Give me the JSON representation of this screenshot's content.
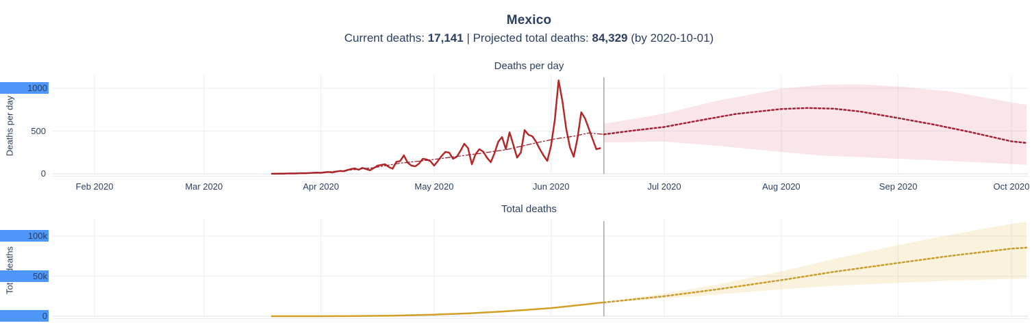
{
  "header": {
    "title": "Mexico",
    "subtitle": {
      "current_label": "Current deaths:",
      "current_value": "17,141",
      "separator": "|",
      "projected_label": "Projected total deaths:",
      "projected_value": "84,329",
      "suffix": "(by 2020-10-01)"
    }
  },
  "colors": {
    "text": "#2a3f5f",
    "grid": "#e9edf2",
    "zeroline": "#dde2ea",
    "axisline": "#e8ebf1",
    "divider": "#8e8e8e",
    "selection_highlight": "#4e96f7",
    "daily_actual": "#b32727",
    "daily_trend": "#9c2030",
    "daily_projection": "#a32135",
    "daily_band": "rgba(214,62,84,0.13)",
    "total_actual": "#d19f26",
    "total_projection": "#c99d2c",
    "total_band": "rgba(234,181,73,0.18)"
  },
  "chart_data": [
    {
      "type": "line",
      "title": "Deaths per day",
      "ylabel": "Deaths per day",
      "divider_date": "2020-06-15",
      "x_axis": {
        "ticks": [
          {
            "label": "Feb 2020",
            "date": "2020-02-01"
          },
          {
            "label": "Mar 2020",
            "date": "2020-03-01"
          },
          {
            "label": "Apr 2020",
            "date": "2020-04-01"
          },
          {
            "label": "May 2020",
            "date": "2020-05-01"
          },
          {
            "label": "Jun 2020",
            "date": "2020-06-01"
          },
          {
            "label": "Jul 2020",
            "date": "2020-07-01"
          },
          {
            "label": "Aug 2020",
            "date": "2020-08-01"
          },
          {
            "label": "Sep 2020",
            "date": "2020-09-01"
          },
          {
            "label": "Oct 2020",
            "date": "2020-10-01"
          }
        ]
      },
      "y_axis": {
        "ticks": [
          {
            "label": "0",
            "value": 0,
            "selected": false
          },
          {
            "label": "500",
            "value": 500,
            "selected": false
          },
          {
            "label": "1000",
            "value": 1000,
            "selected": true
          }
        ],
        "range": [
          0,
          1152
        ]
      },
      "series": [
        {
          "name": "daily-deaths-actual",
          "style": "solid",
          "color": "#b32727",
          "start": "2020-03-19",
          "values": [
            2,
            1,
            3,
            2,
            4,
            5,
            4,
            6,
            8,
            7,
            10,
            12,
            14,
            12,
            18,
            22,
            16,
            26,
            34,
            30,
            44,
            56,
            64,
            48,
            70,
            56,
            42,
            68,
            96,
            104,
            112,
            80,
            60,
            140,
            150,
            216,
            130,
            96,
            88,
            120,
            176,
            168,
            150,
            96,
            150,
            210,
            256,
            248,
            176,
            200,
            270,
            352,
            300,
            112,
            230,
            288,
            260,
            190,
            136,
            240,
            376,
            430,
            290,
            485,
            340,
            190,
            250,
            512,
            456,
            440,
            376,
            290,
            215,
            152,
            330,
            632,
            1092,
            848,
            528,
            310,
            200,
            416,
            720,
            648,
            528,
            408,
            288,
            300
          ]
        },
        {
          "name": "daily-deaths-trend",
          "style": "dashdot",
          "color": "#9c2030",
          "points": [
            [
              "2020-03-19",
              2
            ],
            [
              "2020-04-01",
              15
            ],
            [
              "2020-04-08",
              42
            ],
            [
              "2020-04-15",
              72
            ],
            [
              "2020-04-22",
              125
            ],
            [
              "2020-04-29",
              158
            ],
            [
              "2020-05-06",
              198
            ],
            [
              "2020-05-13",
              238
            ],
            [
              "2020-05-20",
              282
            ],
            [
              "2020-05-27",
              352
            ],
            [
              "2020-06-02",
              408
            ],
            [
              "2020-06-07",
              440
            ],
            [
              "2020-06-11",
              478
            ],
            [
              "2020-06-15",
              462
            ]
          ]
        },
        {
          "name": "daily-deaths-projected",
          "style": "dotted",
          "color": "#a32135",
          "points": [
            [
              "2020-06-15",
              462
            ],
            [
              "2020-06-22",
              502
            ],
            [
              "2020-07-01",
              548
            ],
            [
              "2020-07-10",
              622
            ],
            [
              "2020-07-20",
              700
            ],
            [
              "2020-08-01",
              758
            ],
            [
              "2020-08-08",
              770
            ],
            [
              "2020-08-15",
              762
            ],
            [
              "2020-08-22",
              728
            ],
            [
              "2020-09-01",
              652
            ],
            [
              "2020-09-10",
              580
            ],
            [
              "2020-09-20",
              490
            ],
            [
              "2020-10-01",
              380
            ],
            [
              "2020-10-05",
              362
            ]
          ]
        },
        {
          "name": "daily-deaths-uncertainty-band",
          "style": "band",
          "color": "rgba(214,62,84,0.13)",
          "upper": [
            [
              "2020-06-15",
              585
            ],
            [
              "2020-07-01",
              705
            ],
            [
              "2020-07-15",
              855
            ],
            [
              "2020-08-01",
              995
            ],
            [
              "2020-08-12",
              1042
            ],
            [
              "2020-08-22",
              1046
            ],
            [
              "2020-09-01",
              1022
            ],
            [
              "2020-09-15",
              962
            ],
            [
              "2020-10-01",
              835
            ],
            [
              "2020-10-05",
              808
            ]
          ],
          "lower": [
            [
              "2020-06-15",
              365
            ],
            [
              "2020-07-01",
              378
            ],
            [
              "2020-07-15",
              328
            ],
            [
              "2020-08-01",
              255
            ],
            [
              "2020-08-12",
              212
            ],
            [
              "2020-08-22",
              195
            ],
            [
              "2020-09-01",
              176
            ],
            [
              "2020-09-15",
              150
            ],
            [
              "2020-10-01",
              115
            ],
            [
              "2020-10-05",
              105
            ]
          ]
        }
      ]
    },
    {
      "type": "line",
      "title": "Total deaths",
      "ylabel": "Total deaths",
      "divider_date": "2020-06-15",
      "y_axis": {
        "ticks": [
          {
            "label": "0",
            "value": 0,
            "selected": true
          },
          {
            "label": "50k",
            "value": 50000,
            "selected": true
          },
          {
            "label": "100k",
            "value": 100000,
            "selected": true
          }
        ],
        "range": [
          0,
          121000
        ]
      },
      "series": [
        {
          "name": "total-deaths-actual",
          "style": "solid",
          "color": "#d19f26",
          "points": [
            [
              "2020-03-19",
              1
            ],
            [
              "2020-04-01",
              29
            ],
            [
              "2020-04-10",
              194
            ],
            [
              "2020-04-20",
              686
            ],
            [
              "2020-05-01",
              1972
            ],
            [
              "2020-05-10",
              3465
            ],
            [
              "2020-05-20",
              6090
            ],
            [
              "2020-06-01",
              10167
            ],
            [
              "2020-06-10",
              14649
            ],
            [
              "2020-06-14",
              16872
            ],
            [
              "2020-06-15",
              17141
            ]
          ]
        },
        {
          "name": "total-deaths-projected",
          "style": "dotted",
          "color": "#c99d2c",
          "points": [
            [
              "2020-06-15",
              17141
            ],
            [
              "2020-07-01",
              25000
            ],
            [
              "2020-07-15",
              33500
            ],
            [
              "2020-08-01",
              45000
            ],
            [
              "2020-08-15",
              55500
            ],
            [
              "2020-09-01",
              66500
            ],
            [
              "2020-09-15",
              75500
            ],
            [
              "2020-10-01",
              84329
            ],
            [
              "2020-10-05",
              85600
            ]
          ]
        },
        {
          "name": "total-deaths-uncertainty-band",
          "style": "band",
          "color": "rgba(234,181,73,0.18)",
          "upper": [
            [
              "2020-06-15",
              17600
            ],
            [
              "2020-07-01",
              28500
            ],
            [
              "2020-07-15",
              39500
            ],
            [
              "2020-08-01",
              56000
            ],
            [
              "2020-08-15",
              71500
            ],
            [
              "2020-09-01",
              89000
            ],
            [
              "2020-09-15",
              102000
            ],
            [
              "2020-10-01",
              115500
            ],
            [
              "2020-10-05",
              118000
            ]
          ],
          "lower": [
            [
              "2020-06-15",
              16700
            ],
            [
              "2020-07-01",
              22000
            ],
            [
              "2020-07-15",
              27000
            ],
            [
              "2020-08-01",
              33500
            ],
            [
              "2020-08-15",
              38000
            ],
            [
              "2020-09-01",
              41500
            ],
            [
              "2020-09-15",
              44200
            ],
            [
              "2020-10-01",
              46500
            ],
            [
              "2020-10-05",
              47000
            ]
          ]
        }
      ]
    }
  ]
}
